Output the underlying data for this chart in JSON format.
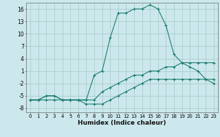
{
  "title": "",
  "xlabel": "Humidex (Indice chaleur)",
  "bg_color": "#cce8ec",
  "grid_color": "#aacccc",
  "line_color": "#1a7a6e",
  "xlim": [
    -0.5,
    23.5
  ],
  "ylim": [
    -9,
    17.5
  ],
  "xticks": [
    0,
    1,
    2,
    3,
    4,
    5,
    6,
    7,
    8,
    9,
    10,
    11,
    12,
    13,
    14,
    15,
    16,
    17,
    18,
    19,
    20,
    21,
    22,
    23
  ],
  "yticks": [
    -8,
    -5,
    -2,
    1,
    4,
    7,
    10,
    13,
    16
  ],
  "series1_x": [
    0,
    1,
    2,
    3,
    4,
    5,
    6,
    7,
    8,
    9,
    10,
    11,
    12,
    13,
    14,
    15,
    16,
    17,
    18,
    19,
    20,
    21,
    22,
    23
  ],
  "series1_y": [
    -6,
    -6,
    -6,
    -6,
    -6,
    -6,
    -6,
    -7,
    -7,
    -7,
    -6,
    -5,
    -4,
    -3,
    -2,
    -1,
    -1,
    -1,
    -1,
    -1,
    -1,
    -1,
    -1,
    -1
  ],
  "series2_x": [
    0,
    1,
    2,
    3,
    4,
    5,
    6,
    7,
    8,
    9,
    10,
    11,
    12,
    13,
    14,
    15,
    16,
    17,
    18,
    19,
    20,
    21,
    22,
    23
  ],
  "series2_y": [
    -6,
    -6,
    -5,
    -5,
    -6,
    -6,
    -6,
    -6,
    -6,
    -4,
    -3,
    -2,
    -1,
    0,
    0,
    1,
    1,
    2,
    2,
    3,
    3,
    3,
    3,
    3
  ],
  "series3_x": [
    0,
    1,
    2,
    3,
    4,
    5,
    6,
    7,
    8,
    9,
    10,
    11,
    12,
    13,
    14,
    15,
    16,
    17,
    18,
    19,
    20,
    21,
    22,
    23
  ],
  "series3_y": [
    -6,
    -6,
    -5,
    -5,
    -6,
    -6,
    -6,
    -6,
    0,
    1,
    9,
    15,
    15,
    16,
    16,
    17,
    16,
    12,
    5,
    3,
    2,
    1,
    -1,
    -2
  ]
}
